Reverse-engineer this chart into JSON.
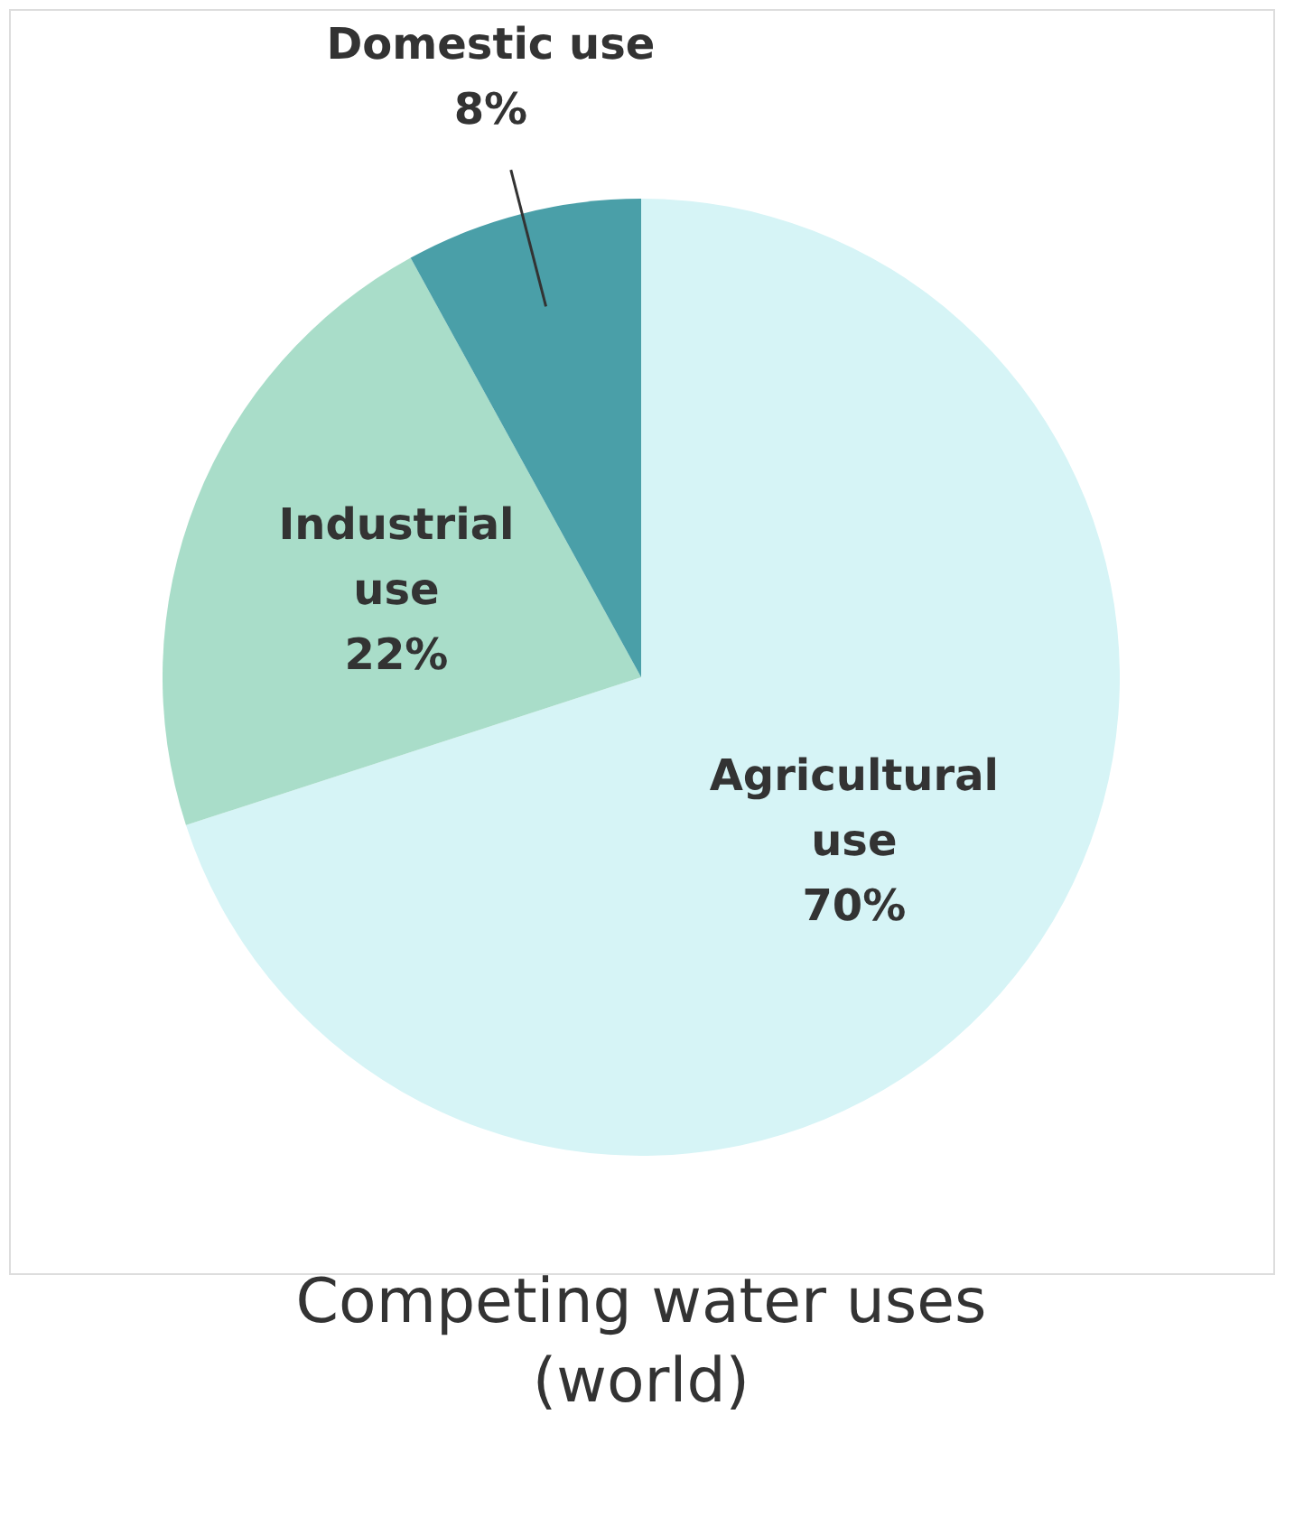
{
  "chart_data": {
    "type": "pie",
    "title": "Competing water uses (world)",
    "categories": [
      "Agricultural use",
      "Industrial use",
      "Domestic use"
    ],
    "values": [
      70,
      22,
      8
    ],
    "colors": [
      "#d6f4f6",
      "#a9ddc9",
      "#4a9fa8"
    ],
    "value_labels": [
      "70%",
      "22%",
      "8%"
    ]
  }
}
